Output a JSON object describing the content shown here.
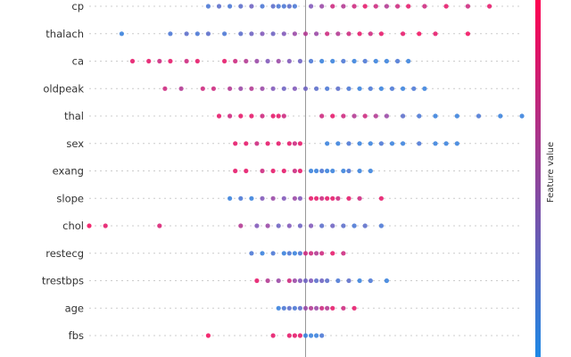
{
  "chart_data": {
    "type": "scatter",
    "subtype": "beeswarm",
    "title": "",
    "xlabel": "",
    "ylabel": "",
    "xlim": [
      -0.4,
      0.4
    ],
    "zero_value": 0,
    "colorbar": {
      "label": "Feature value",
      "low_color": "#1e88e5",
      "high_color": "#ff0051",
      "high_label": "",
      "low_label": ""
    },
    "features": [
      {
        "name": "cp",
        "points": [
          [
            -0.18,
            0.2
          ],
          [
            -0.16,
            0.3
          ],
          [
            -0.14,
            0.2
          ],
          [
            -0.12,
            0.3
          ],
          [
            -0.1,
            0.4
          ],
          [
            -0.08,
            0.2
          ],
          [
            -0.06,
            0.3
          ],
          [
            -0.05,
            0.2
          ],
          [
            -0.04,
            0.2
          ],
          [
            -0.03,
            0.3
          ],
          [
            -0.02,
            0.2
          ],
          [
            0.01,
            0.5
          ],
          [
            0.03,
            0.6
          ],
          [
            0.05,
            0.8
          ],
          [
            0.07,
            0.7
          ],
          [
            0.09,
            0.8
          ],
          [
            0.11,
            0.9
          ],
          [
            0.13,
            0.8
          ],
          [
            0.15,
            0.7
          ],
          [
            0.17,
            0.8
          ],
          [
            0.19,
            0.9
          ],
          [
            0.22,
            0.8
          ],
          [
            0.26,
            0.9
          ],
          [
            0.3,
            0.8
          ],
          [
            0.34,
            0.9
          ]
        ]
      },
      {
        "name": "thalach",
        "points": [
          [
            -0.34,
            0.1
          ],
          [
            -0.25,
            0.2
          ],
          [
            -0.22,
            0.3
          ],
          [
            -0.2,
            0.2
          ],
          [
            -0.18,
            0.3
          ],
          [
            -0.15,
            0.2
          ],
          [
            -0.12,
            0.3
          ],
          [
            -0.1,
            0.4
          ],
          [
            -0.08,
            0.5
          ],
          [
            -0.06,
            0.4
          ],
          [
            -0.04,
            0.5
          ],
          [
            -0.02,
            0.6
          ],
          [
            0.0,
            0.7
          ],
          [
            0.02,
            0.6
          ],
          [
            0.04,
            0.8
          ],
          [
            0.06,
            0.7
          ],
          [
            0.08,
            0.8
          ],
          [
            0.1,
            0.9
          ],
          [
            0.12,
            0.8
          ],
          [
            0.14,
            0.9
          ],
          [
            0.18,
            0.9
          ],
          [
            0.21,
            0.95
          ],
          [
            0.24,
            0.9
          ],
          [
            0.3,
            0.95
          ]
        ]
      },
      {
        "name": "ca",
        "points": [
          [
            -0.32,
            0.9
          ],
          [
            -0.29,
            0.9
          ],
          [
            -0.27,
            0.8
          ],
          [
            -0.25,
            0.9
          ],
          [
            -0.22,
            0.8
          ],
          [
            -0.2,
            0.9
          ],
          [
            -0.15,
            0.9
          ],
          [
            -0.13,
            0.8
          ],
          [
            -0.11,
            0.7
          ],
          [
            -0.09,
            0.6
          ],
          [
            -0.07,
            0.5
          ],
          [
            -0.05,
            0.6
          ],
          [
            -0.03,
            0.5
          ],
          [
            -0.01,
            0.4
          ],
          [
            0.01,
            0.2
          ],
          [
            0.03,
            0.1
          ],
          [
            0.05,
            0.1
          ],
          [
            0.07,
            0.2
          ],
          [
            0.09,
            0.1
          ],
          [
            0.11,
            0.2
          ],
          [
            0.13,
            0.1
          ],
          [
            0.15,
            0.1
          ],
          [
            0.17,
            0.2
          ],
          [
            0.19,
            0.1
          ]
        ]
      },
      {
        "name": "oldpeak",
        "points": [
          [
            -0.26,
            0.8
          ],
          [
            -0.23,
            0.7
          ],
          [
            -0.19,
            0.8
          ],
          [
            -0.17,
            0.8
          ],
          [
            -0.14,
            0.7
          ],
          [
            -0.12,
            0.6
          ],
          [
            -0.1,
            0.7
          ],
          [
            -0.08,
            0.6
          ],
          [
            -0.06,
            0.5
          ],
          [
            -0.04,
            0.4
          ],
          [
            -0.02,
            0.5
          ],
          [
            0.0,
            0.4
          ],
          [
            0.02,
            0.3
          ],
          [
            0.04,
            0.2
          ],
          [
            0.06,
            0.3
          ],
          [
            0.08,
            0.2
          ],
          [
            0.1,
            0.1
          ],
          [
            0.12,
            0.2
          ],
          [
            0.14,
            0.1
          ],
          [
            0.16,
            0.2
          ],
          [
            0.18,
            0.1
          ],
          [
            0.2,
            0.2
          ],
          [
            0.22,
            0.1
          ]
        ]
      },
      {
        "name": "thal",
        "points": [
          [
            -0.16,
            0.9
          ],
          [
            -0.14,
            0.8
          ],
          [
            -0.12,
            0.9
          ],
          [
            -0.1,
            0.9
          ],
          [
            -0.08,
            0.8
          ],
          [
            -0.06,
            0.9
          ],
          [
            -0.05,
            0.9
          ],
          [
            -0.04,
            0.8
          ],
          [
            0.03,
            0.8
          ],
          [
            0.05,
            0.9
          ],
          [
            0.07,
            0.8
          ],
          [
            0.09,
            0.7
          ],
          [
            0.11,
            0.8
          ],
          [
            0.13,
            0.7
          ],
          [
            0.15,
            0.6
          ],
          [
            0.18,
            0.3
          ],
          [
            0.21,
            0.2
          ],
          [
            0.24,
            0.1
          ],
          [
            0.28,
            0.1
          ],
          [
            0.32,
            0.2
          ],
          [
            0.36,
            0.1
          ],
          [
            0.4,
            0.1
          ]
        ]
      },
      {
        "name": "sex",
        "points": [
          [
            -0.13,
            0.9
          ],
          [
            -0.11,
            0.9
          ],
          [
            -0.09,
            0.8
          ],
          [
            -0.07,
            0.9
          ],
          [
            -0.05,
            0.9
          ],
          [
            -0.03,
            0.9
          ],
          [
            -0.02,
            0.8
          ],
          [
            -0.01,
            0.9
          ],
          [
            0.04,
            0.1
          ],
          [
            0.06,
            0.1
          ],
          [
            0.08,
            0.2
          ],
          [
            0.1,
            0.1
          ],
          [
            0.12,
            0.1
          ],
          [
            0.14,
            0.2
          ],
          [
            0.16,
            0.1
          ],
          [
            0.18,
            0.1
          ],
          [
            0.21,
            0.2
          ],
          [
            0.24,
            0.1
          ],
          [
            0.26,
            0.1
          ],
          [
            0.28,
            0.1
          ]
        ]
      },
      {
        "name": "exang",
        "points": [
          [
            -0.13,
            0.9
          ],
          [
            -0.11,
            0.9
          ],
          [
            -0.08,
            0.8
          ],
          [
            -0.06,
            0.9
          ],
          [
            -0.04,
            0.9
          ],
          [
            -0.02,
            0.8
          ],
          [
            -0.01,
            0.9
          ],
          [
            0.01,
            0.1
          ],
          [
            0.02,
            0.1
          ],
          [
            0.03,
            0.2
          ],
          [
            0.04,
            0.1
          ],
          [
            0.05,
            0.1
          ],
          [
            0.07,
            0.1
          ],
          [
            0.08,
            0.2
          ],
          [
            0.1,
            0.1
          ],
          [
            0.12,
            0.1
          ]
        ]
      },
      {
        "name": "slope",
        "points": [
          [
            -0.14,
            0.1
          ],
          [
            -0.12,
            0.2
          ],
          [
            -0.1,
            0.1
          ],
          [
            -0.08,
            0.5
          ],
          [
            -0.06,
            0.6
          ],
          [
            -0.04,
            0.5
          ],
          [
            -0.02,
            0.6
          ],
          [
            -0.01,
            0.5
          ],
          [
            0.01,
            0.9
          ],
          [
            0.02,
            0.9
          ],
          [
            0.03,
            0.8
          ],
          [
            0.04,
            0.9
          ],
          [
            0.05,
            0.9
          ],
          [
            0.06,
            0.8
          ],
          [
            0.08,
            0.9
          ],
          [
            0.1,
            0.8
          ],
          [
            0.14,
            0.9
          ]
        ]
      },
      {
        "name": "chol",
        "points": [
          [
            -0.4,
            0.95
          ],
          [
            -0.37,
            0.9
          ],
          [
            -0.27,
            0.85
          ],
          [
            -0.12,
            0.7
          ],
          [
            -0.09,
            0.5
          ],
          [
            -0.07,
            0.6
          ],
          [
            -0.05,
            0.4
          ],
          [
            -0.03,
            0.5
          ],
          [
            -0.01,
            0.4
          ],
          [
            0.01,
            0.5
          ],
          [
            0.03,
            0.3
          ],
          [
            0.05,
            0.4
          ],
          [
            0.07,
            0.3
          ],
          [
            0.09,
            0.2
          ],
          [
            0.11,
            0.3
          ],
          [
            0.14,
            0.2
          ]
        ]
      },
      {
        "name": "restecg",
        "points": [
          [
            -0.1,
            0.2
          ],
          [
            -0.08,
            0.1
          ],
          [
            -0.06,
            0.2
          ],
          [
            -0.04,
            0.1
          ],
          [
            -0.03,
            0.2
          ],
          [
            -0.02,
            0.1
          ],
          [
            -0.01,
            0.2
          ],
          [
            0.0,
            0.8
          ],
          [
            0.01,
            0.8
          ],
          [
            0.02,
            0.7
          ],
          [
            0.03,
            0.8
          ],
          [
            0.05,
            0.9
          ],
          [
            0.07,
            0.8
          ]
        ]
      },
      {
        "name": "trestbps",
        "points": [
          [
            -0.09,
            0.9
          ],
          [
            -0.07,
            0.7
          ],
          [
            -0.05,
            0.6
          ],
          [
            -0.03,
            0.8
          ],
          [
            -0.02,
            0.6
          ],
          [
            -0.01,
            0.5
          ],
          [
            0.0,
            0.4
          ],
          [
            0.01,
            0.5
          ],
          [
            0.02,
            0.3
          ],
          [
            0.03,
            0.4
          ],
          [
            0.04,
            0.3
          ],
          [
            0.06,
            0.2
          ],
          [
            0.08,
            0.3
          ],
          [
            0.1,
            0.1
          ],
          [
            0.12,
            0.2
          ],
          [
            0.15,
            0.1
          ]
        ]
      },
      {
        "name": "age",
        "points": [
          [
            -0.05,
            0.1
          ],
          [
            -0.04,
            0.2
          ],
          [
            -0.03,
            0.3
          ],
          [
            -0.02,
            0.2
          ],
          [
            -0.01,
            0.3
          ],
          [
            0.0,
            0.6
          ],
          [
            0.01,
            0.7
          ],
          [
            0.02,
            0.6
          ],
          [
            0.03,
            0.8
          ],
          [
            0.04,
            0.7
          ],
          [
            0.05,
            0.9
          ],
          [
            0.07,
            0.8
          ],
          [
            0.09,
            0.9
          ]
        ]
      },
      {
        "name": "fbs",
        "points": [
          [
            -0.18,
            0.95
          ],
          [
            -0.06,
            0.9
          ],
          [
            -0.03,
            0.9
          ],
          [
            -0.02,
            0.9
          ],
          [
            -0.01,
            0.9
          ],
          [
            0.0,
            0.1
          ],
          [
            0.01,
            0.1
          ],
          [
            0.02,
            0.1
          ],
          [
            0.03,
            0.2
          ]
        ]
      }
    ]
  }
}
